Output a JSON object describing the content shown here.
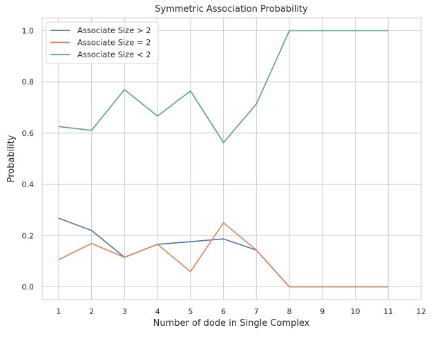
{
  "chart_data": {
    "type": "line",
    "title": "Symmetric Association Probability",
    "xlabel": "Number of dode in Single Complex",
    "ylabel": "Probability",
    "xlim": [
      0.5,
      12
    ],
    "ylim": [
      -0.05,
      1.05
    ],
    "xticks": [
      1,
      2,
      3,
      4,
      5,
      6,
      7,
      8,
      9,
      10,
      11,
      12
    ],
    "yticks": [
      0.0,
      0.2,
      0.4,
      0.6,
      0.8,
      1.0
    ],
    "grid": true,
    "legend_position": "top-left",
    "x": [
      1,
      2,
      3,
      4,
      5,
      6,
      7,
      8,
      9,
      10,
      11
    ],
    "series": [
      {
        "name": "Associate Size > 2",
        "color": "#4c72b0",
        "values": [
          0.268,
          0.22,
          0.115,
          0.166,
          0.176,
          0.187,
          0.143,
          0.0,
          0.0,
          0.0,
          0.0
        ]
      },
      {
        "name": "Associate Size = 2",
        "color": "#dd8452",
        "values": [
          0.106,
          0.169,
          0.115,
          0.166,
          0.059,
          0.25,
          0.143,
          0.0,
          0.0,
          0.0,
          0.0
        ]
      },
      {
        "name": "Associate Size < 2",
        "color": "#55a868",
        "values": [
          0.626,
          0.611,
          0.77,
          0.667,
          0.765,
          0.563,
          0.714,
          1.0,
          1.0,
          1.0,
          1.0
        ]
      }
    ]
  }
}
